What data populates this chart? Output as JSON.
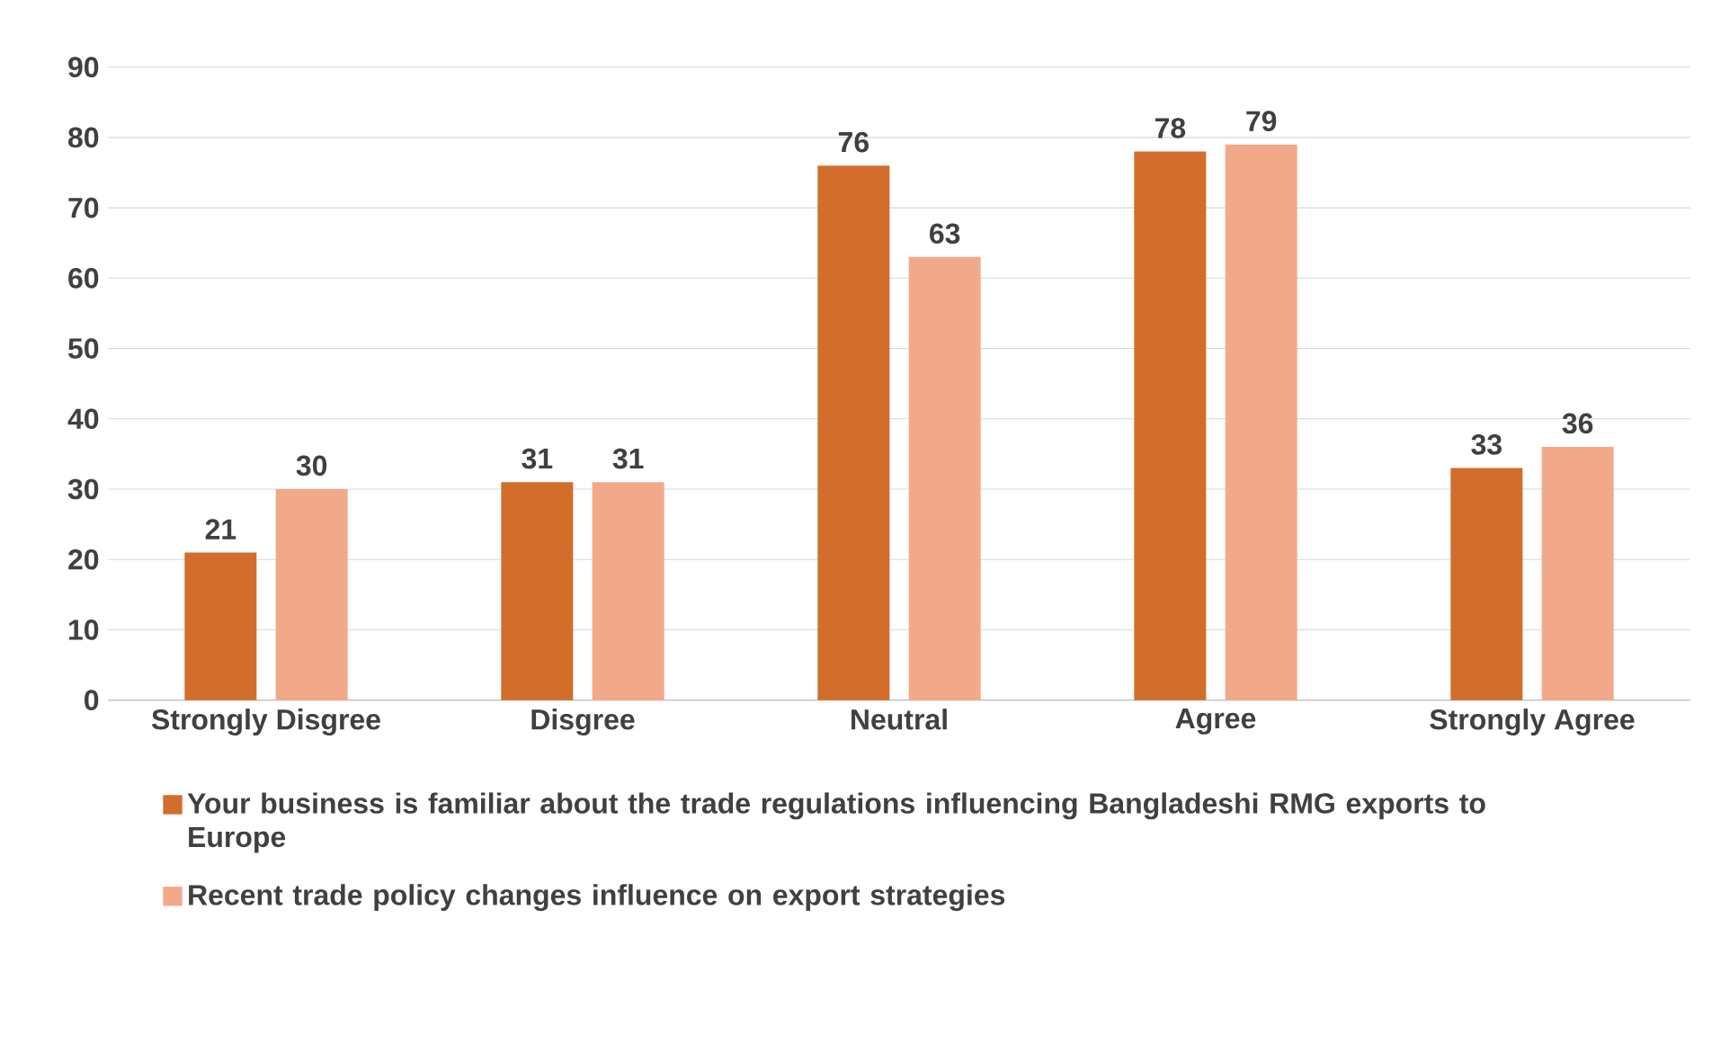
{
  "chart_data": {
    "type": "bar",
    "categories": [
      "Strongly Disgree",
      "Disgree",
      "Neutral",
      "Agree",
      "Strongly Agree"
    ],
    "series": [
      {
        "name": "Your business is familiar about the trade regulations influencing Bangladeshi RMG exports to Europe",
        "color": "#d26d2b",
        "values": [
          21,
          31,
          76,
          78,
          33
        ]
      },
      {
        "name": "Recent trade policy changes influence on export strategies",
        "color": "#f2a98a",
        "values": [
          30,
          31,
          63,
          79,
          36
        ]
      }
    ],
    "ylim": [
      0,
      90
    ],
    "yticks": [
      0,
      10,
      20,
      30,
      40,
      50,
      60,
      70,
      80,
      90
    ],
    "grid": "y",
    "legend": "bottom",
    "data_labels": true
  }
}
